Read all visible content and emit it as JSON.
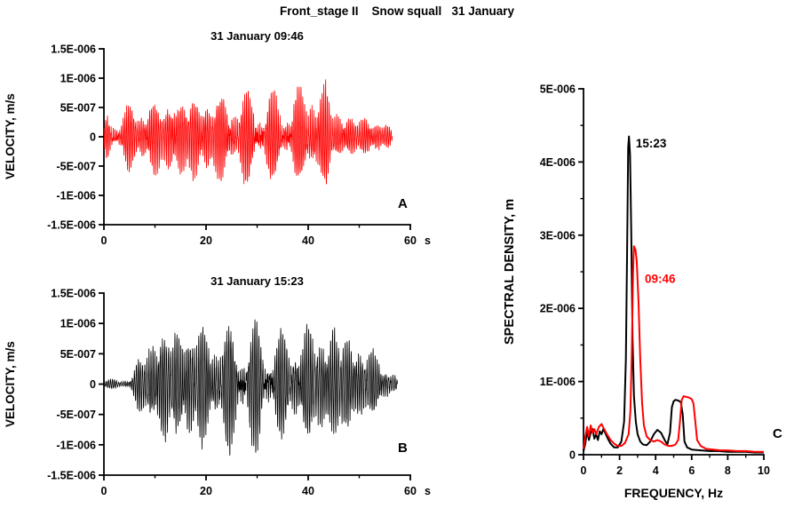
{
  "figure": {
    "title": "Front_stage II    Snow squall   31 January"
  },
  "chart_data": [
    {
      "id": "A",
      "panel_label": "A",
      "type": "line",
      "kind": "waveform",
      "title": "31 January 09:46",
      "ylabel": "VELOCITY, m/s",
      "x_unit": "s",
      "color": "#ff0000",
      "value_unit": "1e-6 m/s",
      "xlim": [
        0,
        60
      ],
      "ylim": [
        -1.5,
        1.5
      ],
      "xticks": {
        "major": [
          0,
          20,
          40,
          60
        ],
        "labels": [
          "0",
          "20",
          "40",
          "60"
        ],
        "minor": [
          10,
          30,
          50
        ]
      },
      "yticks": {
        "major": [
          1.5,
          1,
          0.5,
          0,
          -0.5,
          -1,
          -1.5
        ],
        "labels": [
          "1.5E-006",
          "1E-006",
          "5E-007",
          "0",
          "-5E-007",
          "-1E-006",
          "-1.5E-006"
        ],
        "minor": []
      },
      "duration_s": 56.5,
      "sample_rate_hz": 40,
      "dominant_freq_hz": 2.9,
      "secondary_freq_hz": 5.6,
      "seed": 11,
      "envelope": [
        [
          0,
          0.1
        ],
        [
          0.7,
          0.38
        ],
        [
          1.5,
          0.42
        ],
        [
          2.2,
          0.28
        ],
        [
          3,
          0.3
        ],
        [
          5,
          0.42
        ],
        [
          8,
          0.45
        ],
        [
          12,
          0.5
        ],
        [
          16,
          0.55
        ],
        [
          20,
          0.58
        ],
        [
          24,
          0.55
        ],
        [
          28,
          0.56
        ],
        [
          32,
          0.52
        ],
        [
          36,
          0.55
        ],
        [
          40,
          0.6
        ],
        [
          42,
          0.68
        ],
        [
          43.5,
          0.7
        ],
        [
          44.5,
          0.45
        ],
        [
          46,
          0.32
        ],
        [
          48,
          0.28
        ],
        [
          50,
          0.26
        ],
        [
          53,
          0.25
        ],
        [
          55,
          0.22
        ],
        [
          56.2,
          0.1
        ],
        [
          56.5,
          0.02
        ]
      ]
    },
    {
      "id": "B",
      "panel_label": "B",
      "type": "line",
      "kind": "waveform",
      "title": "31 January 15:23",
      "ylabel": "VELOCITY, m/s",
      "x_unit": "s",
      "color": "#000000",
      "value_unit": "1e-6 m/s",
      "xlim": [
        0,
        60
      ],
      "ylim": [
        -1.5,
        1.5
      ],
      "xticks": {
        "major": [
          0,
          20,
          40,
          60
        ],
        "labels": [
          "0",
          "20",
          "40",
          "60"
        ],
        "minor": [
          10,
          30,
          50
        ]
      },
      "yticks": {
        "major": [
          1.5,
          1,
          0.5,
          0,
          -0.5,
          -1,
          -1.5
        ],
        "labels": [
          "1.5E-006",
          "1E-006",
          "5E-007",
          "0",
          "-5E-007",
          "-1E-006",
          "-1.5E-006"
        ],
        "minor": []
      },
      "duration_s": 57.5,
      "sample_rate_hz": 40,
      "dominant_freq_hz": 2.55,
      "secondary_freq_hz": 5.15,
      "seed": 29,
      "envelope": [
        [
          0,
          0.05
        ],
        [
          3,
          0.06
        ],
        [
          5,
          0.08
        ],
        [
          6,
          0.2
        ],
        [
          8,
          0.5
        ],
        [
          10,
          0.68
        ],
        [
          12,
          0.78
        ],
        [
          14,
          0.72
        ],
        [
          16,
          0.78
        ],
        [
          18,
          0.8
        ],
        [
          20,
          0.72
        ],
        [
          22,
          0.68
        ],
        [
          24,
          0.75
        ],
        [
          26,
          0.7
        ],
        [
          28,
          0.78
        ],
        [
          30,
          0.75
        ],
        [
          32,
          0.6
        ],
        [
          34,
          0.65
        ],
        [
          36,
          0.6
        ],
        [
          38,
          0.68
        ],
        [
          40,
          0.7
        ],
        [
          42,
          0.72
        ],
        [
          44,
          0.75
        ],
        [
          46,
          0.72
        ],
        [
          48,
          0.65
        ],
        [
          50,
          0.55
        ],
        [
          52,
          0.45
        ],
        [
          54,
          0.35
        ],
        [
          56,
          0.25
        ],
        [
          57,
          0.12
        ],
        [
          57.5,
          0.03
        ]
      ]
    },
    {
      "id": "C",
      "panel_label": "C",
      "type": "line",
      "kind": "spectrum",
      "xlabel": "FREQUENCY, Hz",
      "ylabel": "SPECTRAL DENSITY, m",
      "value_unit": "1e-6 m",
      "xlim": [
        0,
        10
      ],
      "ylim": [
        0,
        5
      ],
      "xticks": {
        "major": [
          0,
          2,
          4,
          6,
          8,
          10
        ],
        "labels": [
          "0",
          "2",
          "4",
          "6",
          "8",
          "10"
        ],
        "minor": [
          1,
          3,
          5,
          7,
          9
        ]
      },
      "yticks": {
        "major": [
          0,
          1,
          2,
          3,
          4,
          5
        ],
        "labels": [
          "0",
          "1E-006",
          "2E-006",
          "3E-006",
          "4E-006",
          "5E-006"
        ],
        "minor": [
          0.5,
          1.5,
          2.5,
          3.5,
          4.5
        ]
      },
      "series": [
        {
          "name": "15:23",
          "color": "#000000",
          "points": [
            [
              0,
              0.05
            ],
            [
              0.1,
              0.15
            ],
            [
              0.2,
              0.33
            ],
            [
              0.3,
              0.2
            ],
            [
              0.4,
              0.3
            ],
            [
              0.5,
              0.35
            ],
            [
              0.6,
              0.22
            ],
            [
              0.7,
              0.28
            ],
            [
              0.8,
              0.2
            ],
            [
              0.9,
              0.32
            ],
            [
              1.0,
              0.28
            ],
            [
              1.1,
              0.35
            ],
            [
              1.2,
              0.3
            ],
            [
              1.35,
              0.22
            ],
            [
              1.5,
              0.15
            ],
            [
              1.7,
              0.1
            ],
            [
              1.9,
              0.1
            ],
            [
              2.1,
              0.18
            ],
            [
              2.25,
              0.45
            ],
            [
              2.35,
              1.3
            ],
            [
              2.42,
              2.8
            ],
            [
              2.48,
              4.2
            ],
            [
              2.52,
              4.35
            ],
            [
              2.58,
              4.1
            ],
            [
              2.65,
              3.0
            ],
            [
              2.72,
              1.6
            ],
            [
              2.8,
              0.8
            ],
            [
              2.9,
              0.45
            ],
            [
              3.0,
              0.28
            ],
            [
              3.15,
              0.18
            ],
            [
              3.3,
              0.14
            ],
            [
              3.5,
              0.13
            ],
            [
              3.7,
              0.18
            ],
            [
              3.9,
              0.28
            ],
            [
              4.1,
              0.34
            ],
            [
              4.3,
              0.3
            ],
            [
              4.5,
              0.2
            ],
            [
              4.65,
              0.14
            ],
            [
              4.8,
              0.3
            ],
            [
              4.9,
              0.65
            ],
            [
              5.0,
              0.73
            ],
            [
              5.1,
              0.75
            ],
            [
              5.25,
              0.74
            ],
            [
              5.4,
              0.72
            ],
            [
              5.5,
              0.55
            ],
            [
              5.6,
              0.18
            ],
            [
              5.75,
              0.1
            ],
            [
              6.0,
              0.07
            ],
            [
              6.5,
              0.06
            ],
            [
              7.0,
              0.05
            ],
            [
              7.5,
              0.05
            ],
            [
              8.0,
              0.04
            ],
            [
              8.5,
              0.04
            ],
            [
              9.0,
              0.04
            ],
            [
              9.5,
              0.03
            ],
            [
              10,
              0.03
            ]
          ]
        },
        {
          "name": "09:46",
          "color": "#ff0000",
          "points": [
            [
              0,
              0.08
            ],
            [
              0.1,
              0.25
            ],
            [
              0.2,
              0.38
            ],
            [
              0.3,
              0.25
            ],
            [
              0.4,
              0.4
            ],
            [
              0.5,
              0.3
            ],
            [
              0.6,
              0.35
            ],
            [
              0.7,
              0.28
            ],
            [
              0.85,
              0.38
            ],
            [
              1.0,
              0.42
            ],
            [
              1.15,
              0.35
            ],
            [
              1.3,
              0.28
            ],
            [
              1.5,
              0.2
            ],
            [
              1.7,
              0.15
            ],
            [
              1.9,
              0.12
            ],
            [
              2.1,
              0.12
            ],
            [
              2.3,
              0.16
            ],
            [
              2.5,
              0.28
            ],
            [
              2.6,
              0.6
            ],
            [
              2.68,
              1.4
            ],
            [
              2.75,
              2.5
            ],
            [
              2.8,
              2.85
            ],
            [
              2.88,
              2.8
            ],
            [
              2.95,
              2.65
            ],
            [
              3.05,
              2.1
            ],
            [
              3.15,
              1.3
            ],
            [
              3.25,
              0.7
            ],
            [
              3.35,
              0.4
            ],
            [
              3.5,
              0.25
            ],
            [
              3.7,
              0.2
            ],
            [
              3.9,
              0.18
            ],
            [
              4.1,
              0.2
            ],
            [
              4.3,
              0.18
            ],
            [
              4.5,
              0.14
            ],
            [
              4.7,
              0.12
            ],
            [
              4.9,
              0.12
            ],
            [
              5.1,
              0.14
            ],
            [
              5.25,
              0.2
            ],
            [
              5.35,
              0.45
            ],
            [
              5.45,
              0.75
            ],
            [
              5.55,
              0.8
            ],
            [
              5.7,
              0.79
            ],
            [
              5.85,
              0.78
            ],
            [
              6.0,
              0.76
            ],
            [
              6.1,
              0.7
            ],
            [
              6.2,
              0.45
            ],
            [
              6.3,
              0.2
            ],
            [
              6.5,
              0.12
            ],
            [
              6.8,
              0.08
            ],
            [
              7.2,
              0.07
            ],
            [
              7.6,
              0.06
            ],
            [
              8.0,
              0.06
            ],
            [
              8.5,
              0.05
            ],
            [
              9.0,
              0.05
            ],
            [
              9.5,
              0.04
            ],
            [
              10,
              0.04
            ]
          ]
        }
      ],
      "annotations": [
        {
          "text": "15:23",
          "color": "#000000",
          "x": 2.9,
          "y": 4.2
        },
        {
          "text": "09:46",
          "color": "#ff0000",
          "x": 3.4,
          "y": 2.35
        }
      ]
    }
  ]
}
